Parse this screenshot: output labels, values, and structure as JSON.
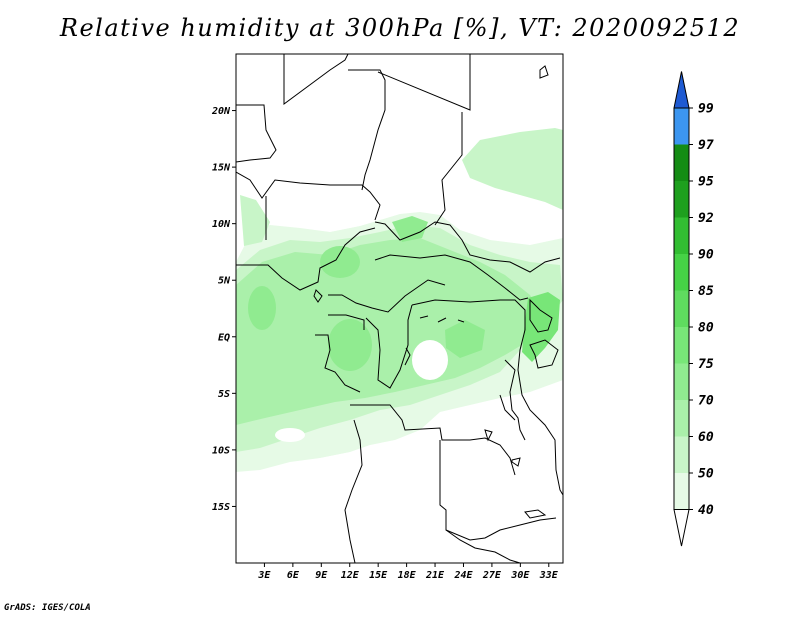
{
  "title": "Relative humidity at 300hPa [%], VT: 2020092512",
  "credit": "GrADS: IGES/COLA",
  "map": {
    "lon_range": [
      0,
      34.5
    ],
    "lat_range": [
      -20,
      25
    ],
    "lat_ticks": [
      {
        "value": 20,
        "label": "20N"
      },
      {
        "value": 15,
        "label": "15N"
      },
      {
        "value": 10,
        "label": "10N"
      },
      {
        "value": 5,
        "label": "5N"
      },
      {
        "value": 0,
        "label": "EQ"
      },
      {
        "value": -5,
        "label": "5S"
      },
      {
        "value": -10,
        "label": "10S"
      },
      {
        "value": -15,
        "label": "15S"
      }
    ],
    "lon_ticks": [
      {
        "value": 3,
        "label": "3E"
      },
      {
        "value": 6,
        "label": "6E"
      },
      {
        "value": 9,
        "label": "9E"
      },
      {
        "value": 12,
        "label": "12E"
      },
      {
        "value": 15,
        "label": "15E"
      },
      {
        "value": 18,
        "label": "18E"
      },
      {
        "value": 21,
        "label": "21E"
      },
      {
        "value": 24,
        "label": "24E"
      },
      {
        "value": 27,
        "label": "27E"
      },
      {
        "value": 30,
        "label": "30E"
      },
      {
        "value": 33,
        "label": "33E"
      }
    ]
  },
  "colorbar": {
    "levels": [
      "40",
      "50",
      "60",
      "70",
      "75",
      "80",
      "85",
      "90",
      "92",
      "95",
      "97",
      "99"
    ],
    "colors": [
      "#e6fae6",
      "#c8f5c8",
      "#aaf0aa",
      "#90eb90",
      "#78e678",
      "#5fdc5f",
      "#46d246",
      "#32be32",
      "#1ea01e",
      "#148c14",
      "#3c96f0",
      "#2878e6",
      "#1e5ad2"
    ],
    "low_end_color": "#ffffff",
    "high_end_color": "#1e5ad2"
  }
}
